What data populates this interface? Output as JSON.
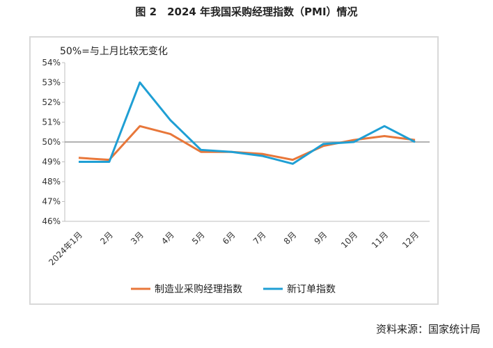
{
  "title": "图 2　2024 年我国采购经理指数（PMI）情况",
  "source": "资料来源：国家统计局",
  "chart_data": {
    "type": "line",
    "annotation": "50%=与上月比较无变化",
    "categories": [
      "2024年1月",
      "2月",
      "3月",
      "4月",
      "5月",
      "6月",
      "7月",
      "8月",
      "9月",
      "10月",
      "11月",
      "12月"
    ],
    "ylim": [
      46,
      54
    ],
    "yticks": [
      "46%",
      "47%",
      "48%",
      "49%",
      "50%",
      "51%",
      "52%",
      "53%",
      "54%"
    ],
    "reference_line": 50,
    "grid": false,
    "legend_position": "bottom",
    "series": [
      {
        "name": "制造业采购经理指数",
        "color": "#e8773a",
        "values": [
          49.2,
          49.1,
          50.8,
          50.4,
          49.5,
          49.5,
          49.4,
          49.1,
          49.8,
          50.1,
          50.3,
          50.1
        ]
      },
      {
        "name": "新订单指数",
        "color": "#1f9fd4",
        "values": [
          49.0,
          49.0,
          53.0,
          51.1,
          49.6,
          49.5,
          49.3,
          48.9,
          49.9,
          50.0,
          50.8,
          50.0
        ]
      }
    ]
  }
}
